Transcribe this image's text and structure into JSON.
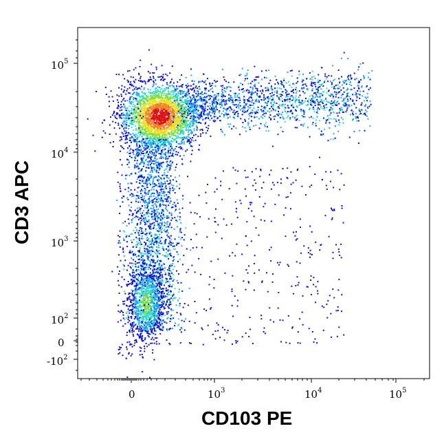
{
  "chart_data": {
    "type": "scatter",
    "subtype": "flow-cytometry-density-dot-plot",
    "title": "",
    "xlabel": "CD103 PE",
    "ylabel": "CD3 APC",
    "x_scale": "biexponential (log above ~10^2, linear near 0)",
    "y_scale": "biexponential (log above ~10^2, linear near 0)",
    "grid": false,
    "legend": "none",
    "x_ticks": [
      {
        "label": "0",
        "value": 0
      },
      {
        "base": "10",
        "exp": "3",
        "value": 1000
      },
      {
        "base": "10",
        "exp": "4",
        "value": 10000
      },
      {
        "base": "10",
        "exp": "5",
        "value": 100000
      }
    ],
    "y_ticks": [
      {
        "base": "10",
        "exp": "5",
        "value": 100000
      },
      {
        "base": "10",
        "exp": "4",
        "value": 10000
      },
      {
        "base": "10",
        "exp": "3",
        "value": 1000
      },
      {
        "base": "10",
        "exp": "2",
        "value": 100
      },
      {
        "label": "0",
        "value": 0
      },
      {
        "base": "-10",
        "exp": "2",
        "value": -100
      }
    ],
    "color_scale": [
      "#0a10c8",
      "#1ba8f0",
      "#30e0c0",
      "#7ae040",
      "#e8e020",
      "#f08020",
      "#e01010"
    ],
    "populations": [
      {
        "name": "CD3+ CD103-",
        "x_center": 40,
        "y_center": 22000,
        "density": "highest"
      },
      {
        "name": "CD3+ CD103+",
        "x_center": 8000,
        "y_center": 30000,
        "density": "medium"
      },
      {
        "name": "CD3- CD103-",
        "x_center": 30,
        "y_center": 150,
        "density": "high"
      },
      {
        "name": "CD3- CD103+ (sparse)",
        "x_center": 2500,
        "y_center": 300,
        "density": "low"
      }
    ]
  }
}
